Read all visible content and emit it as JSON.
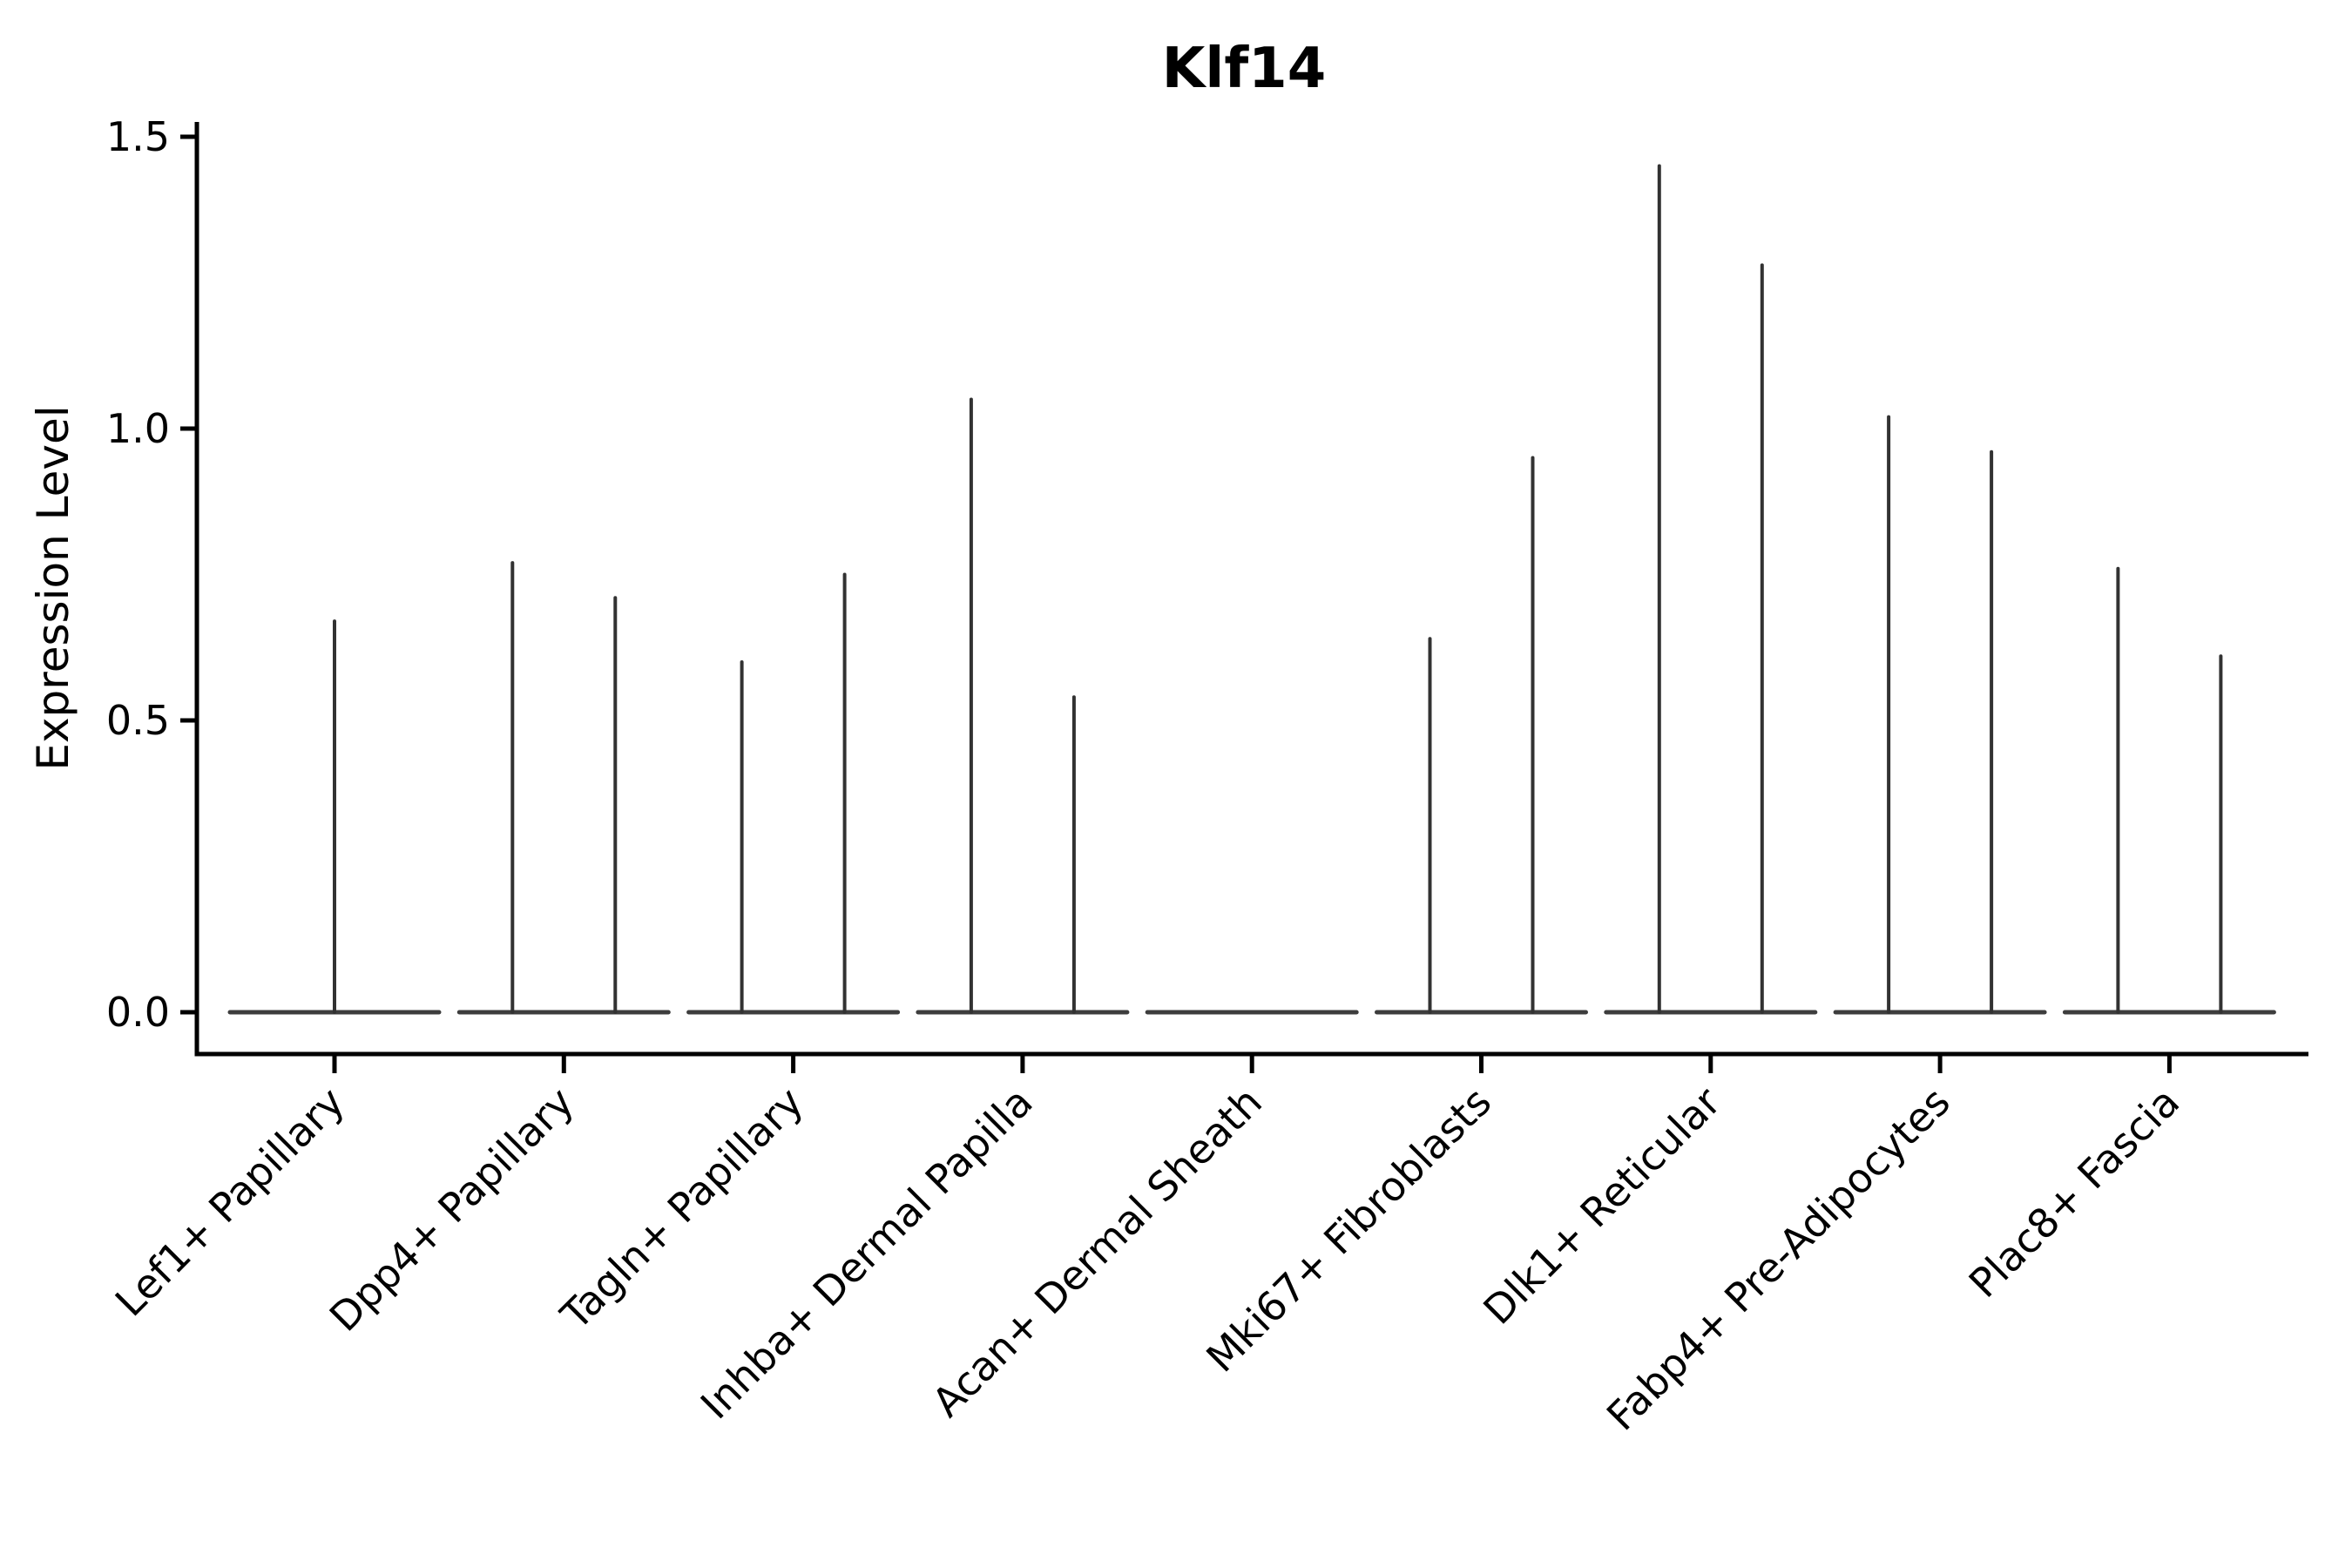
{
  "figure": {
    "background_color": "#ffffff",
    "axis_color": "#000000",
    "violin_color": "#323232",
    "baseline_color": "#3d3d3d"
  },
  "chart_data": {
    "type": "violin",
    "title": "Klf14",
    "ylabel": "Expression Level",
    "xlabel": "",
    "grid": false,
    "legend": null,
    "ylim": [
      -0.07,
      1.53
    ],
    "yticks": [
      0.0,
      0.5,
      1.0,
      1.5
    ],
    "ytick_labels": [
      "0.0",
      "0.5",
      "1.0",
      "1.5"
    ],
    "x_tick_rotation": 45,
    "categories": [
      "Lef1+ Papillary",
      "Dpp4+ Papillary",
      "Tagln+ Papillary",
      "Inhba+ Dermal Papilla",
      "Acan+ Dermal Sheath",
      "Mki67+ Fibroblasts",
      "Dlk1+ Reticular",
      "Fabp4+ Pre-Adipocytes",
      "Plac8+ Fascia"
    ],
    "series": [
      {
        "category": "Lef1+ Papillary",
        "violins": [
          {
            "position": "center",
            "max": 0.67
          }
        ]
      },
      {
        "category": "Dpp4+ Papillary",
        "violins": [
          {
            "position": "left",
            "max": 0.77
          },
          {
            "position": "right",
            "max": 0.71
          }
        ]
      },
      {
        "category": "Tagln+ Papillary",
        "violins": [
          {
            "position": "left",
            "max": 0.6
          },
          {
            "position": "right",
            "max": 0.75
          }
        ]
      },
      {
        "category": "Inhba+ Dermal Papilla",
        "violins": [
          {
            "position": "left",
            "max": 1.05
          },
          {
            "position": "right",
            "max": 0.54
          }
        ]
      },
      {
        "category": "Acan+ Dermal Sheath",
        "violins": []
      },
      {
        "category": "Mki67+ Fibroblasts",
        "violins": [
          {
            "position": "left",
            "max": 0.64
          },
          {
            "position": "right",
            "max": 0.95
          }
        ]
      },
      {
        "category": "Dlk1+ Reticular",
        "violins": [
          {
            "position": "left",
            "max": 1.45
          },
          {
            "position": "right",
            "max": 1.28
          }
        ]
      },
      {
        "category": "Fabp4+ Pre-Adipocytes",
        "violins": [
          {
            "position": "left",
            "max": 1.02
          },
          {
            "position": "right",
            "max": 0.96
          }
        ]
      },
      {
        "category": "Plac8+ Fascia",
        "violins": [
          {
            "position": "left",
            "max": 0.76
          },
          {
            "position": "right",
            "max": 0.61
          }
        ]
      }
    ],
    "baseline_value": 0.0
  }
}
